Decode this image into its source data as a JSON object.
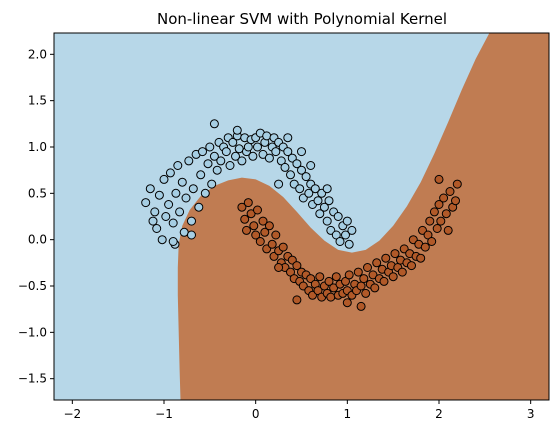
{
  "chart_data": {
    "type": "scatter",
    "title": "Non-linear SVM with Polynomial Kernel",
    "xlabel": "",
    "ylabel": "",
    "xlim": [
      -2.2,
      3.2
    ],
    "ylim": [
      -1.73,
      2.23
    ],
    "x_ticks": [
      "−2",
      "−1",
      "0",
      "1",
      "2",
      "3"
    ],
    "y_ticks": [
      "−1.5",
      "−1.0",
      "−0.5",
      "0.0",
      "0.5",
      "1.0",
      "1.5",
      "2.0"
    ],
    "grid": false,
    "legend": "none",
    "region_colors": {
      "class_0": "#b7d7e8",
      "class_1": "#c07c52"
    },
    "marker_colors": {
      "class_0": "#a6cee3",
      "class_1": "#b15928"
    },
    "marker_edge": "#000000",
    "decision_boundary": {
      "x": [
        -0.82,
        -0.83,
        -0.84,
        -0.85,
        -0.85,
        -0.84,
        -0.8,
        -0.72,
        -0.6,
        -0.45,
        -0.3,
        -0.15,
        0.0,
        0.15,
        0.3,
        0.45,
        0.6,
        0.75,
        0.9,
        1.05,
        1.2,
        1.35,
        1.5,
        1.65,
        1.8,
        1.95,
        2.1,
        2.25,
        2.4,
        2.55,
        2.7,
        2.85,
        3.0,
        3.2
      ],
      "y": [
        -1.73,
        -1.4,
        -1.0,
        -0.6,
        -0.3,
        -0.05,
        0.15,
        0.32,
        0.47,
        0.58,
        0.64,
        0.67,
        0.65,
        0.58,
        0.46,
        0.3,
        0.13,
        -0.01,
        -0.11,
        -0.14,
        -0.11,
        -0.01,
        0.15,
        0.36,
        0.62,
        0.93,
        1.27,
        1.62,
        1.95,
        2.23,
        2.23,
        2.23,
        2.23,
        2.23
      ]
    },
    "series": [
      {
        "name": "",
        "class": 0,
        "points": [
          [
            -1.2,
            0.4
          ],
          [
            -1.15,
            0.55
          ],
          [
            -1.1,
            0.3
          ],
          [
            -1.08,
            0.12
          ],
          [
            -1.05,
            0.48
          ],
          [
            -1.02,
            0.0
          ],
          [
            -1.0,
            0.65
          ],
          [
            -0.98,
            0.25
          ],
          [
            -0.95,
            0.38
          ],
          [
            -0.93,
            0.72
          ],
          [
            -0.9,
            0.18
          ],
          [
            -0.88,
            -0.05
          ],
          [
            -0.87,
            0.5
          ],
          [
            -0.85,
            0.8
          ],
          [
            -0.83,
            0.3
          ],
          [
            -0.8,
            0.62
          ],
          [
            -0.78,
            0.08
          ],
          [
            -0.76,
            0.45
          ],
          [
            -0.73,
            0.85
          ],
          [
            -0.7,
            0.2
          ],
          [
            -0.68,
            0.55
          ],
          [
            -0.65,
            0.92
          ],
          [
            -0.62,
            0.35
          ],
          [
            -0.6,
            0.7
          ],
          [
            -0.58,
            0.95
          ],
          [
            -0.55,
            0.5
          ],
          [
            -0.52,
            0.82
          ],
          [
            -0.5,
            1.0
          ],
          [
            -0.48,
            0.6
          ],
          [
            -0.45,
            0.9
          ],
          [
            -0.42,
            0.75
          ],
          [
            -0.4,
            1.05
          ],
          [
            -0.38,
            0.85
          ],
          [
            -0.35,
            1.0
          ],
          [
            -0.32,
            0.95
          ],
          [
            -0.3,
            1.1
          ],
          [
            -0.28,
            0.8
          ],
          [
            -0.25,
            1.05
          ],
          [
            -0.22,
            0.9
          ],
          [
            -0.2,
            1.12
          ],
          [
            -0.18,
            0.98
          ],
          [
            -0.15,
            0.85
          ],
          [
            -0.12,
            1.1
          ],
          [
            -0.1,
            0.95
          ],
          [
            -0.08,
            1.0
          ],
          [
            -0.05,
            1.08
          ],
          [
            -0.03,
            0.9
          ],
          [
            0.0,
            1.1
          ],
          [
            0.02,
            1.0
          ],
          [
            0.05,
            1.15
          ],
          [
            0.08,
            0.92
          ],
          [
            0.1,
            1.05
          ],
          [
            0.12,
            1.12
          ],
          [
            0.15,
            0.88
          ],
          [
            0.18,
            1.0
          ],
          [
            0.2,
            1.1
          ],
          [
            0.22,
            0.95
          ],
          [
            0.25,
            1.05
          ],
          [
            0.28,
            0.85
          ],
          [
            0.3,
            1.0
          ],
          [
            0.32,
            0.78
          ],
          [
            0.35,
            0.95
          ],
          [
            0.38,
            0.7
          ],
          [
            0.4,
            0.88
          ],
          [
            0.42,
            0.6
          ],
          [
            0.45,
            0.82
          ],
          [
            0.48,
            0.55
          ],
          [
            0.5,
            0.75
          ],
          [
            0.52,
            0.45
          ],
          [
            0.55,
            0.68
          ],
          [
            0.58,
            0.5
          ],
          [
            0.6,
            0.6
          ],
          [
            0.62,
            0.38
          ],
          [
            0.65,
            0.55
          ],
          [
            0.68,
            0.42
          ],
          [
            0.7,
            0.28
          ],
          [
            0.72,
            0.5
          ],
          [
            0.75,
            0.35
          ],
          [
            0.78,
            0.2
          ],
          [
            0.8,
            0.42
          ],
          [
            0.82,
            0.1
          ],
          [
            0.85,
            0.3
          ],
          [
            0.88,
            0.05
          ],
          [
            0.9,
            0.25
          ],
          [
            0.92,
            -0.02
          ],
          [
            0.95,
            0.15
          ],
          [
            0.98,
            0.05
          ],
          [
            1.0,
            0.2
          ],
          [
            1.02,
            -0.05
          ],
          [
            1.05,
            0.1
          ],
          [
            -0.45,
            1.25
          ],
          [
            -0.2,
            1.18
          ],
          [
            0.35,
            1.1
          ],
          [
            0.6,
            0.8
          ],
          [
            -0.7,
            0.05
          ],
          [
            -1.12,
            0.2
          ],
          [
            0.25,
            0.6
          ],
          [
            0.5,
            0.95
          ],
          [
            0.78,
            0.55
          ],
          [
            -0.9,
            -0.02
          ]
        ]
      },
      {
        "name": "",
        "class": 1,
        "points": [
          [
            -0.15,
            0.35
          ],
          [
            -0.12,
            0.22
          ],
          [
            -0.1,
            0.1
          ],
          [
            -0.08,
            0.4
          ],
          [
            -0.05,
            0.28
          ],
          [
            -0.02,
            0.15
          ],
          [
            0.0,
            0.05
          ],
          [
            0.02,
            0.32
          ],
          [
            0.05,
            -0.02
          ],
          [
            0.08,
            0.2
          ],
          [
            0.1,
            0.08
          ],
          [
            0.12,
            -0.1
          ],
          [
            0.15,
            0.15
          ],
          [
            0.18,
            -0.05
          ],
          [
            0.2,
            -0.18
          ],
          [
            0.22,
            0.05
          ],
          [
            0.25,
            -0.12
          ],
          [
            0.28,
            -0.25
          ],
          [
            0.3,
            -0.08
          ],
          [
            0.32,
            -0.3
          ],
          [
            0.35,
            -0.18
          ],
          [
            0.38,
            -0.35
          ],
          [
            0.4,
            -0.22
          ],
          [
            0.42,
            -0.42
          ],
          [
            0.45,
            -0.28
          ],
          [
            0.48,
            -0.45
          ],
          [
            0.5,
            -0.35
          ],
          [
            0.52,
            -0.5
          ],
          [
            0.55,
            -0.38
          ],
          [
            0.58,
            -0.55
          ],
          [
            0.6,
            -0.42
          ],
          [
            0.62,
            -0.6
          ],
          [
            0.65,
            -0.48
          ],
          [
            0.68,
            -0.55
          ],
          [
            0.7,
            -0.4
          ],
          [
            0.72,
            -0.62
          ],
          [
            0.75,
            -0.5
          ],
          [
            0.78,
            -0.58
          ],
          [
            0.8,
            -0.45
          ],
          [
            0.82,
            -0.62
          ],
          [
            0.85,
            -0.52
          ],
          [
            0.88,
            -0.4
          ],
          [
            0.9,
            -0.6
          ],
          [
            0.92,
            -0.48
          ],
          [
            0.95,
            -0.58
          ],
          [
            0.98,
            -0.45
          ],
          [
            1.0,
            -0.55
          ],
          [
            1.02,
            -0.38
          ],
          [
            1.05,
            -0.6
          ],
          [
            1.08,
            -0.48
          ],
          [
            1.1,
            -0.55
          ],
          [
            1.12,
            -0.35
          ],
          [
            1.15,
            -0.5
          ],
          [
            1.18,
            -0.42
          ],
          [
            1.2,
            -0.58
          ],
          [
            1.22,
            -0.3
          ],
          [
            1.25,
            -0.48
          ],
          [
            1.28,
            -0.38
          ],
          [
            1.3,
            -0.52
          ],
          [
            1.32,
            -0.25
          ],
          [
            1.35,
            -0.42
          ],
          [
            1.38,
            -0.32
          ],
          [
            1.4,
            -0.45
          ],
          [
            1.42,
            -0.2
          ],
          [
            1.45,
            -0.35
          ],
          [
            1.48,
            -0.28
          ],
          [
            1.5,
            -0.4
          ],
          [
            1.52,
            -0.15
          ],
          [
            1.55,
            -0.3
          ],
          [
            1.58,
            -0.22
          ],
          [
            1.6,
            -0.35
          ],
          [
            1.62,
            -0.1
          ],
          [
            1.65,
            -0.25
          ],
          [
            1.68,
            -0.15
          ],
          [
            1.7,
            -0.28
          ],
          [
            1.72,
            0.0
          ],
          [
            1.75,
            -0.18
          ],
          [
            1.78,
            -0.05
          ],
          [
            1.8,
            -0.2
          ],
          [
            1.82,
            0.1
          ],
          [
            1.85,
            -0.08
          ],
          [
            1.88,
            0.05
          ],
          [
            1.9,
            0.2
          ],
          [
            1.92,
            -0.02
          ],
          [
            1.95,
            0.3
          ],
          [
            1.98,
            0.12
          ],
          [
            2.0,
            0.38
          ],
          [
            2.02,
            0.2
          ],
          [
            2.05,
            0.45
          ],
          [
            2.08,
            0.28
          ],
          [
            2.1,
            0.1
          ],
          [
            2.12,
            0.52
          ],
          [
            2.15,
            0.35
          ],
          [
            2.18,
            0.42
          ],
          [
            2.2,
            0.6
          ],
          [
            0.45,
            -0.65
          ],
          [
            1.15,
            -0.72
          ],
          [
            1.0,
            -0.68
          ],
          [
            0.25,
            -0.3
          ],
          [
            2.0,
            0.65
          ]
        ]
      }
    ]
  }
}
